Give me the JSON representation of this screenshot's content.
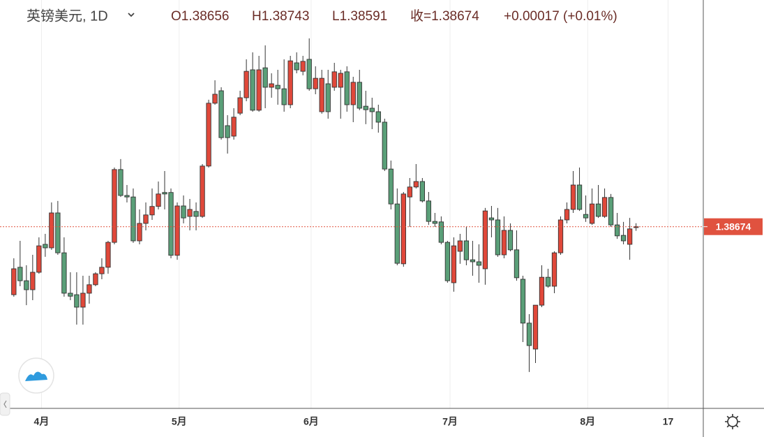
{
  "header": {
    "symbol": "英镑美元, 1D",
    "ohlc": [
      "O1.38656",
      "H1.38743",
      "L1.38591",
      "收=1.38674",
      "+0.00017 (+0.01%)"
    ]
  },
  "chart_data": {
    "type": "candlestick",
    "x": [
      0,
      1,
      2,
      3,
      4,
      5,
      6,
      7,
      8,
      9,
      10,
      11,
      12,
      13,
      14,
      15,
      16,
      17,
      18,
      19,
      20,
      21,
      22,
      23,
      24,
      25,
      26,
      27,
      28,
      29,
      30,
      31,
      32,
      33,
      34,
      35,
      36,
      37,
      38,
      39,
      40,
      41,
      42,
      43,
      44,
      45,
      46,
      47,
      48,
      49,
      50,
      51,
      52,
      53,
      54,
      55,
      56,
      57,
      58,
      59,
      60,
      61,
      62,
      63,
      64,
      65,
      66,
      67,
      68,
      69,
      70,
      71,
      72,
      73,
      74,
      75,
      76,
      77,
      78,
      79,
      80,
      81,
      82,
      83,
      84,
      85,
      86,
      87,
      88,
      89,
      90,
      91,
      92,
      93,
      94,
      95,
      96,
      97,
      98,
      99
    ],
    "open": [
      1.3731,
      1.3786,
      1.3759,
      1.3741,
      1.3776,
      1.3832,
      1.3825,
      1.3895,
      1.3815,
      1.3734,
      1.3731,
      1.3706,
      1.3734,
      1.3751,
      1.3773,
      1.3786,
      1.3836,
      1.3982,
      1.393,
      1.3927,
      1.3839,
      1.3874,
      1.3891,
      1.3908,
      1.3936,
      1.3936,
      1.381,
      1.3909,
      1.3888,
      1.3898,
      1.3888,
      1.3989,
      1.4115,
      1.414,
      1.407,
      1.4049,
      1.4095,
      1.4126,
      1.4182,
      1.4101,
      1.4186,
      1.4147,
      1.4151,
      1.4144,
      1.4112,
      1.4196,
      1.4179,
      1.4203,
      1.4144,
      1.4098,
      1.4154,
      1.4147,
      1.4147,
      1.4178,
      1.4112,
      1.4157,
      1.4109,
      1.4105,
      1.4098,
      1.4077,
      1.3983,
      1.3913,
      1.3793,
      1.3927,
      1.3947,
      1.3958,
      1.3919,
      1.3878,
      1.3877,
      1.3836,
      1.3755,
      1.3818,
      1.3839,
      1.3801,
      1.3797,
      1.3783,
      1.3885,
      1.3881,
      1.3811,
      1.386,
      1.3821,
      1.3762,
      1.3674,
      1.3622,
      1.371,
      1.3766,
      1.3748,
      1.3815,
      1.3881,
      1.3902,
      1.3951,
      1.3892,
      1.3874,
      1.3913,
      1.3888,
      1.3926,
      1.3871,
      1.385,
      1.3832,
      1.38656
    ],
    "high": [
      1.3804,
      1.3839,
      1.379,
      1.3811,
      1.3846,
      1.3853,
      1.3916,
      1.3919,
      1.3846,
      1.3776,
      1.3776,
      1.3769,
      1.3769,
      1.3776,
      1.3804,
      1.3839,
      1.3986,
      1.4003,
      1.3951,
      1.3944,
      1.3902,
      1.3916,
      1.3944,
      1.3958,
      1.3979,
      1.3944,
      1.3916,
      1.393,
      1.3923,
      1.3916,
      1.3993,
      1.4122,
      1.4161,
      1.4147,
      1.4091,
      1.4105,
      1.414,
      1.4203,
      1.4217,
      1.421,
      1.4231,
      1.4175,
      1.4182,
      1.4203,
      1.421,
      1.4217,
      1.421,
      1.4245,
      1.4189,
      1.4182,
      1.4182,
      1.4196,
      1.4182,
      1.4189,
      1.4168,
      1.4182,
      1.414,
      1.4126,
      1.4112,
      1.4084,
      1.4,
      1.3944,
      1.3937,
      1.3965,
      1.3993,
      1.3965,
      1.3937,
      1.3895,
      1.3888,
      1.3839,
      1.3846,
      1.3853,
      1.3867,
      1.3839,
      1.3832,
      1.3905,
      1.3909,
      1.3905,
      1.3888,
      1.3874,
      1.386,
      1.3769,
      1.3692,
      1.371,
      1.379,
      1.3783,
      1.3818,
      1.3888,
      1.3916,
      1.3979,
      1.3986,
      1.393,
      1.3944,
      1.3951,
      1.3944,
      1.3933,
      1.3895,
      1.3877,
      1.3885,
      1.38743
    ],
    "low": [
      1.3727,
      1.3748,
      1.371,
      1.372,
      1.3773,
      1.3807,
      1.3821,
      1.3811,
      1.3727,
      1.372,
      1.3671,
      1.3671,
      1.3713,
      1.3748,
      1.3762,
      1.3773,
      1.3832,
      1.3927,
      1.3916,
      1.3835,
      1.3832,
      1.386,
      1.3881,
      1.3902,
      1.3902,
      1.3804,
      1.3801,
      1.3874,
      1.386,
      1.386,
      1.3885,
      1.3986,
      1.4112,
      1.4042,
      1.4014,
      1.4042,
      1.4091,
      1.4119,
      1.4098,
      1.4098,
      1.4105,
      1.4126,
      1.4112,
      1.4098,
      1.4105,
      1.4175,
      1.4171,
      1.414,
      1.4133,
      1.4094,
      1.4084,
      1.414,
      1.4084,
      1.4098,
      1.4077,
      1.4101,
      1.4073,
      1.4063,
      1.4056,
      1.3979,
      1.3902,
      1.379,
      1.3787,
      1.3867,
      1.3944,
      1.3916,
      1.3871,
      1.3867,
      1.3832,
      1.3755,
      1.3737,
      1.3793,
      1.379,
      1.3769,
      1.3755,
      1.3751,
      1.3846,
      1.3807,
      1.3804,
      1.3818,
      1.3759,
      1.3636,
      1.3576,
      1.3594,
      1.3706,
      1.3745,
      1.3734,
      1.3811,
      1.3874,
      1.3895,
      1.3899,
      1.3877,
      1.3871,
      1.3885,
      1.3885,
      1.3867,
      1.3843,
      1.3832,
      1.3801,
      1.38591
    ],
    "close": [
      1.3783,
      1.3759,
      1.3741,
      1.3776,
      1.3829,
      1.3825,
      1.3895,
      1.3815,
      1.3734,
      1.3728,
      1.3706,
      1.3734,
      1.3751,
      1.3773,
      1.3786,
      1.3836,
      1.3982,
      1.393,
      1.3927,
      1.3839,
      1.3874,
      1.3891,
      1.3908,
      1.3933,
      1.3933,
      1.381,
      1.3909,
      1.3885,
      1.3902,
      1.3888,
      1.3989,
      1.4115,
      1.4133,
      1.4046,
      1.4046,
      1.4087,
      1.4126,
      1.4179,
      1.4101,
      1.4182,
      1.4147,
      1.4154,
      1.4144,
      1.4112,
      1.42,
      1.4182,
      1.4199,
      1.4144,
      1.4165,
      1.4165,
      1.4098,
      1.4178,
      1.4175,
      1.4112,
      1.4157,
      1.4105,
      1.4102,
      1.4098,
      1.4077,
      1.3983,
      1.3913,
      1.3794,
      1.3933,
      1.3947,
      1.3958,
      1.3919,
      1.3878,
      1.3874,
      1.3836,
      1.3759,
      1.3829,
      1.3839,
      1.3801,
      1.3797,
      1.379,
      1.3899,
      1.3881,
      1.3811,
      1.386,
      1.3821,
      1.3765,
      1.3674,
      1.3629,
      1.371,
      1.3766,
      1.3748,
      1.3815,
      1.3881,
      1.3902,
      1.3951,
      1.3902,
      1.3885,
      1.3913,
      1.3888,
      1.3926,
      1.3871,
      1.3849,
      1.3839,
      1.3863,
      1.38674
    ],
    "up_color": "#e0483a",
    "down_color": "#5a9f78",
    "xlim": [
      -2.2,
      109.7
    ],
    "ylim": [
      1.3503,
      1.4322
    ],
    "xticks": [
      {
        "value": 4.4,
        "label": "4月"
      },
      {
        "value": 26.3,
        "label": "5月"
      },
      {
        "value": 47.3,
        "label": "6月"
      },
      {
        "value": 69.4,
        "label": "7月"
      },
      {
        "value": 91.3,
        "label": "8月"
      },
      {
        "value": 104.1,
        "label": "17"
      }
    ],
    "grid": true,
    "last_price_label": "1.38674"
  }
}
